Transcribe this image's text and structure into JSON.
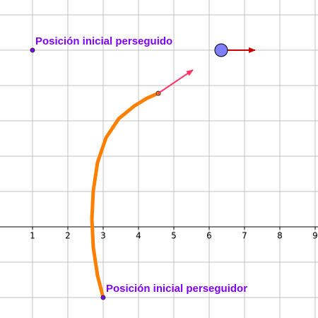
{
  "chart_data": {
    "type": "line",
    "xlim": [
      0.08,
      9.08
    ],
    "ylim": [
      -2.58,
      6.42
    ],
    "xticks": [
      1,
      2,
      3,
      4,
      5,
      6,
      7,
      8,
      9
    ],
    "x_gridlines": [
      0,
      1,
      2,
      3,
      4,
      5,
      6,
      7,
      8,
      9
    ],
    "y_gridlines": [
      -2,
      -1,
      0,
      1,
      2,
      3,
      4,
      5,
      6
    ],
    "grid": true,
    "series": [
      {
        "color": "#ff8000",
        "x": [
          3,
          2.84,
          2.72,
          2.68,
          2.72,
          2.84,
          3.08,
          3.44,
          3.88,
          4.24,
          4.56
        ],
        "values": [
          -2,
          -1.38,
          -0.58,
          0.22,
          1.02,
          1.82,
          2.52,
          3.06,
          3.42,
          3.64,
          3.78
        ]
      }
    ],
    "points": [
      {
        "label": "Posición inicial perseguido",
        "x": 1,
        "y": 5,
        "color": "#7f00ff"
      },
      {
        "label": "Posición inicial perseguidor",
        "x": 3,
        "y": -2,
        "color": "#7f00ff"
      }
    ],
    "target": {
      "x": 6.34,
      "y": 5,
      "color": "#8080ff"
    },
    "vectors": [
      {
        "from": [
          6.34,
          5
        ],
        "to": [
          7.3,
          5
        ],
        "color": "#cc0000"
      },
      {
        "from": [
          4.56,
          3.78
        ],
        "to": [
          5.54,
          4.44
        ],
        "color": "#ff3366"
      }
    ]
  }
}
